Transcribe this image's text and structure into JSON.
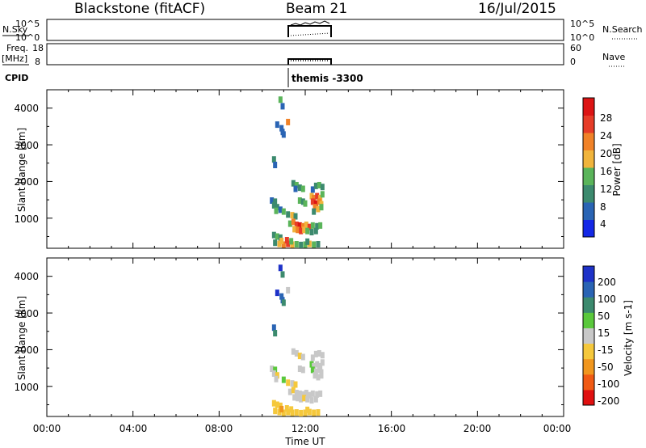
{
  "header": {
    "station": "Blackstone (fitACF)",
    "beam": "Beam 21",
    "date": "16/Jul/2015"
  },
  "top_panels": {
    "nsky_label": "N.Sky",
    "nsky_ticks": [
      "10^5",
      "10^0"
    ],
    "nsearch_label": "N.Search",
    "nsearch_ticks": [
      "10^5",
      "10^0"
    ],
    "freq_label": "Freq.",
    "freq_unit": "[MHz]",
    "freq_ticks": [
      "18",
      "8"
    ],
    "nave_label": "Nave",
    "nave_ticks": [
      "60",
      "0"
    ],
    "cpid_label": "CPID",
    "cpid_text": "themis -3300"
  },
  "x_axis": {
    "label": "Time UT",
    "ticks": [
      "00:00",
      "04:00",
      "08:00",
      "12:00",
      "16:00",
      "20:00",
      "00:00"
    ]
  },
  "colors": {
    "power": [
      "#1428e6",
      "#2a64b4",
      "#3c8a6e",
      "#5ab45a",
      "#f0b43c",
      "#f08228",
      "#e63c28",
      "#dc1414"
    ],
    "velocity": [
      "#e01010",
      "#f05a14",
      "#f0961e",
      "#f5c83c",
      "#c8c8c8",
      "#5ac83c",
      "#3c8a6e",
      "#2a64b4",
      "#1e32c8"
    ]
  },
  "chart_data": [
    {
      "type": "heatmap",
      "name": "power",
      "ylabel": "Slant Range [km]",
      "xlabel": "Time UT",
      "xlim": [
        0,
        24
      ],
      "ylim": [
        180,
        4500
      ],
      "yticks": [
        "4000",
        "3000",
        "2000",
        "1000"
      ],
      "colorbar_label": "Power [dB]",
      "colorbar_ticks": [
        "28",
        "24",
        "20",
        "16",
        "12",
        "8",
        "4"
      ],
      "clim": [
        0,
        32
      ],
      "cells": [
        [
          10.85,
          4230,
          14
        ],
        [
          10.95,
          4050,
          6
        ],
        [
          10.7,
          3550,
          6
        ],
        [
          11.2,
          3620,
          20
        ],
        [
          10.9,
          3450,
          6
        ],
        [
          10.95,
          3350,
          5
        ],
        [
          11.0,
          3280,
          7
        ],
        [
          10.55,
          2600,
          8
        ],
        [
          10.6,
          2450,
          6
        ],
        [
          11.45,
          1950,
          10
        ],
        [
          11.6,
          1900,
          14
        ],
        [
          11.75,
          1830,
          9
        ],
        [
          11.9,
          1800,
          12
        ],
        [
          11.55,
          1800,
          6
        ],
        [
          12.35,
          1780,
          6
        ],
        [
          12.5,
          1880,
          8
        ],
        [
          12.65,
          1900,
          14
        ],
        [
          12.8,
          1850,
          10
        ],
        [
          10.45,
          1480,
          6
        ],
        [
          10.6,
          1450,
          8
        ],
        [
          10.55,
          1350,
          10
        ],
        [
          10.7,
          1300,
          8
        ],
        [
          10.65,
          1200,
          14
        ],
        [
          10.85,
          1230,
          6
        ],
        [
          11.0,
          1180,
          12
        ],
        [
          11.2,
          1100,
          10
        ],
        [
          11.4,
          1080,
          16
        ],
        [
          11.55,
          1050,
          8
        ],
        [
          11.75,
          1480,
          12
        ],
        [
          11.9,
          1450,
          8
        ],
        [
          12.0,
          1400,
          12
        ],
        [
          12.3,
          1600,
          16
        ],
        [
          12.4,
          1550,
          20
        ],
        [
          12.55,
          1600,
          24
        ],
        [
          12.7,
          1550,
          18
        ],
        [
          12.8,
          1650,
          14
        ],
        [
          12.35,
          1450,
          26
        ],
        [
          12.5,
          1400,
          30
        ],
        [
          12.65,
          1450,
          22
        ],
        [
          12.75,
          1380,
          18
        ],
        [
          12.45,
          1300,
          20
        ],
        [
          12.6,
          1250,
          16
        ],
        [
          12.75,
          1300,
          12
        ],
        [
          12.4,
          1180,
          8
        ],
        [
          11.3,
          850,
          12
        ],
        [
          11.45,
          900,
          20
        ],
        [
          11.6,
          820,
          24
        ],
        [
          11.75,
          800,
          28
        ],
        [
          11.9,
          780,
          22
        ],
        [
          12.05,
          820,
          18
        ],
        [
          12.2,
          760,
          24
        ],
        [
          12.35,
          800,
          14
        ],
        [
          12.55,
          780,
          10
        ],
        [
          12.7,
          800,
          12
        ],
        [
          11.5,
          700,
          16
        ],
        [
          11.65,
          680,
          22
        ],
        [
          11.8,
          650,
          26
        ],
        [
          11.95,
          680,
          18
        ],
        [
          12.1,
          650,
          14
        ],
        [
          12.3,
          620,
          10
        ],
        [
          12.5,
          650,
          8
        ],
        [
          10.55,
          540,
          8
        ],
        [
          10.7,
          500,
          12
        ],
        [
          10.85,
          470,
          8
        ],
        [
          10.6,
          330,
          10
        ],
        [
          10.8,
          300,
          16
        ],
        [
          11.0,
          280,
          20
        ],
        [
          11.2,
          300,
          24
        ],
        [
          11.4,
          280,
          18
        ],
        [
          11.6,
          290,
          12
        ],
        [
          11.8,
          270,
          10
        ],
        [
          12.0,
          280,
          14
        ],
        [
          12.2,
          300,
          18
        ],
        [
          12.4,
          280,
          12
        ],
        [
          12.6,
          290,
          8
        ],
        [
          10.9,
          380,
          18
        ],
        [
          11.15,
          400,
          26
        ],
        [
          11.35,
          370,
          12
        ],
        [
          12.1,
          360,
          8
        ]
      ]
    },
    {
      "type": "heatmap",
      "name": "velocity",
      "ylabel": "Slant Range [km]",
      "xlabel": "Time UT",
      "xlim": [
        0,
        24
      ],
      "ylim": [
        180,
        4500
      ],
      "yticks": [
        "4000",
        "3000",
        "2000",
        "1000"
      ],
      "colorbar_label": "Velocity [m s-1]",
      "colorbar_ticks": [
        "200",
        "100",
        "50",
        "15",
        "-15",
        "-50",
        "-100",
        "-200"
      ],
      "clim": [
        -250,
        250
      ],
      "cells": [
        [
          10.85,
          4230,
          200
        ],
        [
          10.95,
          4050,
          120
        ],
        [
          10.7,
          3550,
          200
        ],
        [
          11.2,
          3620,
          -20
        ],
        [
          10.9,
          3450,
          150
        ],
        [
          10.95,
          3350,
          180
        ],
        [
          11.0,
          3280,
          120
        ],
        [
          10.55,
          2600,
          150
        ],
        [
          10.6,
          2450,
          100
        ],
        [
          11.45,
          1950,
          0
        ],
        [
          11.6,
          1900,
          -20
        ],
        [
          11.75,
          1830,
          -30
        ],
        [
          11.9,
          1800,
          0
        ],
        [
          12.35,
          1780,
          -10
        ],
        [
          12.5,
          1880,
          -20
        ],
        [
          12.65,
          1900,
          0
        ],
        [
          12.8,
          1850,
          -10
        ],
        [
          10.45,
          1480,
          -20
        ],
        [
          10.6,
          1450,
          80
        ],
        [
          10.55,
          1350,
          0
        ],
        [
          10.7,
          1300,
          -60
        ],
        [
          10.65,
          1200,
          0
        ],
        [
          11.0,
          1180,
          30
        ],
        [
          11.2,
          1100,
          -40
        ],
        [
          11.4,
          1080,
          0
        ],
        [
          11.55,
          1050,
          -30
        ],
        [
          11.75,
          1480,
          0
        ],
        [
          11.9,
          1450,
          -10
        ],
        [
          12.3,
          1600,
          30
        ],
        [
          12.4,
          1550,
          0
        ],
        [
          12.55,
          1600,
          0
        ],
        [
          12.7,
          1550,
          -10
        ],
        [
          12.8,
          1650,
          0
        ],
        [
          12.35,
          1450,
          30
        ],
        [
          12.5,
          1400,
          0
        ],
        [
          12.65,
          1450,
          0
        ],
        [
          12.75,
          1380,
          -10
        ],
        [
          12.45,
          1300,
          0
        ],
        [
          12.6,
          1250,
          -10
        ],
        [
          12.75,
          1300,
          0
        ],
        [
          11.3,
          850,
          0
        ],
        [
          11.45,
          900,
          -30
        ],
        [
          11.6,
          820,
          0
        ],
        [
          11.75,
          800,
          0
        ],
        [
          11.9,
          780,
          -10
        ],
        [
          12.05,
          820,
          0
        ],
        [
          12.2,
          760,
          0
        ],
        [
          12.35,
          800,
          -20
        ],
        [
          12.55,
          780,
          0
        ],
        [
          12.7,
          800,
          0
        ],
        [
          11.5,
          700,
          -10
        ],
        [
          11.65,
          680,
          0
        ],
        [
          11.8,
          650,
          0
        ],
        [
          11.95,
          680,
          -40
        ],
        [
          12.1,
          650,
          0
        ],
        [
          12.3,
          620,
          -20
        ],
        [
          12.5,
          650,
          0
        ],
        [
          10.55,
          540,
          -60
        ],
        [
          10.7,
          500,
          -40
        ],
        [
          10.85,
          470,
          -30
        ],
        [
          10.6,
          330,
          -60
        ],
        [
          10.8,
          300,
          -40
        ],
        [
          11.0,
          280,
          -80
        ],
        [
          11.2,
          300,
          -60
        ],
        [
          11.4,
          280,
          -40
        ],
        [
          11.6,
          290,
          -30
        ],
        [
          11.8,
          270,
          -60
        ],
        [
          12.0,
          280,
          -40
        ],
        [
          12.2,
          300,
          -80
        ],
        [
          12.4,
          280,
          -60
        ],
        [
          12.6,
          290,
          -40
        ],
        [
          10.9,
          380,
          -120
        ],
        [
          11.15,
          400,
          -40
        ],
        [
          11.35,
          370,
          -60
        ],
        [
          12.1,
          360,
          -30
        ]
      ]
    }
  ]
}
